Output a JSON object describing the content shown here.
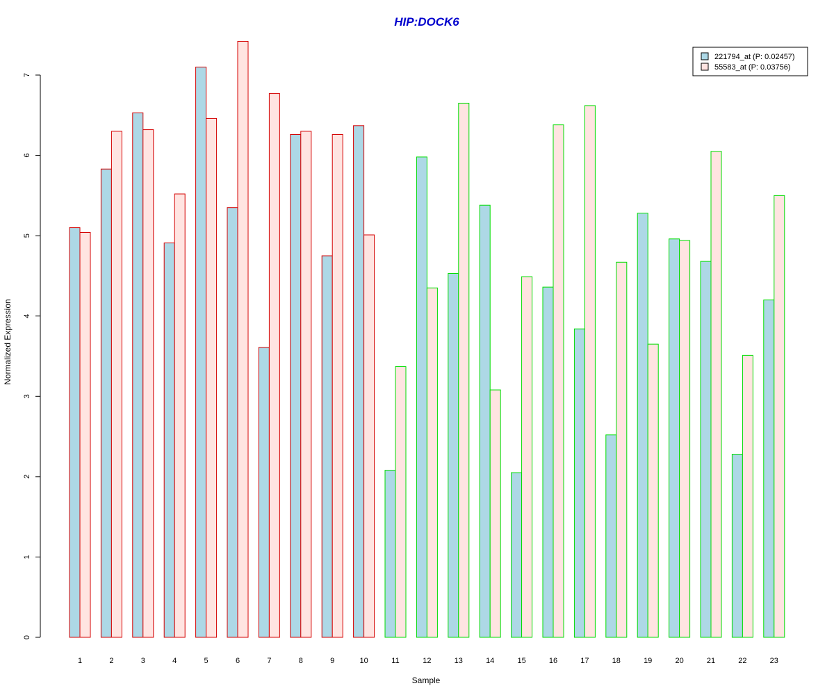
{
  "chart_data": {
    "type": "bar",
    "title": "HIP:DOCK6",
    "xlabel": "Sample",
    "ylabel": "Normalized Expression",
    "ylim": [
      0,
      7.4
    ],
    "yticks": [
      0,
      1,
      2,
      3,
      4,
      5,
      6,
      7
    ],
    "categories": [
      "1",
      "2",
      "3",
      "4",
      "5",
      "6",
      "7",
      "8",
      "9",
      "10",
      "11",
      "12",
      "13",
      "14",
      "15",
      "16",
      "17",
      "18",
      "19",
      "20",
      "21",
      "22",
      "23"
    ],
    "series": [
      {
        "name": "221794_at (P: 0.02457)",
        "fill": "#add8e6",
        "values": [
          5.1,
          5.83,
          6.53,
          4.91,
          7.1,
          5.35,
          3.61,
          6.26,
          4.75,
          6.37,
          2.08,
          5.98,
          4.53,
          5.38,
          2.05,
          4.36,
          3.84,
          2.52,
          5.28,
          4.96,
          4.68,
          2.28,
          4.2
        ]
      },
      {
        "name": "55583_at (P: 0.03756)",
        "fill": "#ffe4e1",
        "values": [
          5.04,
          6.3,
          6.32,
          5.52,
          6.46,
          7.42,
          6.77,
          6.3,
          6.26,
          5.01,
          3.37,
          4.35,
          6.65,
          3.08,
          4.49,
          6.38,
          6.62,
          4.67,
          3.65,
          4.94,
          6.05,
          3.51,
          5.5
        ]
      }
    ],
    "group_border_colors": [
      "#d40000",
      "#d40000",
      "#d40000",
      "#d40000",
      "#d40000",
      "#d40000",
      "#d40000",
      "#d40000",
      "#d40000",
      "#d40000",
      "#00dd00",
      "#00dd00",
      "#00dd00",
      "#00dd00",
      "#00dd00",
      "#00dd00",
      "#00dd00",
      "#00dd00",
      "#00dd00",
      "#00dd00",
      "#00dd00",
      "#00dd00",
      "#00dd00"
    ],
    "title_color": "#0000cd",
    "legend_position": "top-right",
    "grid": false
  }
}
